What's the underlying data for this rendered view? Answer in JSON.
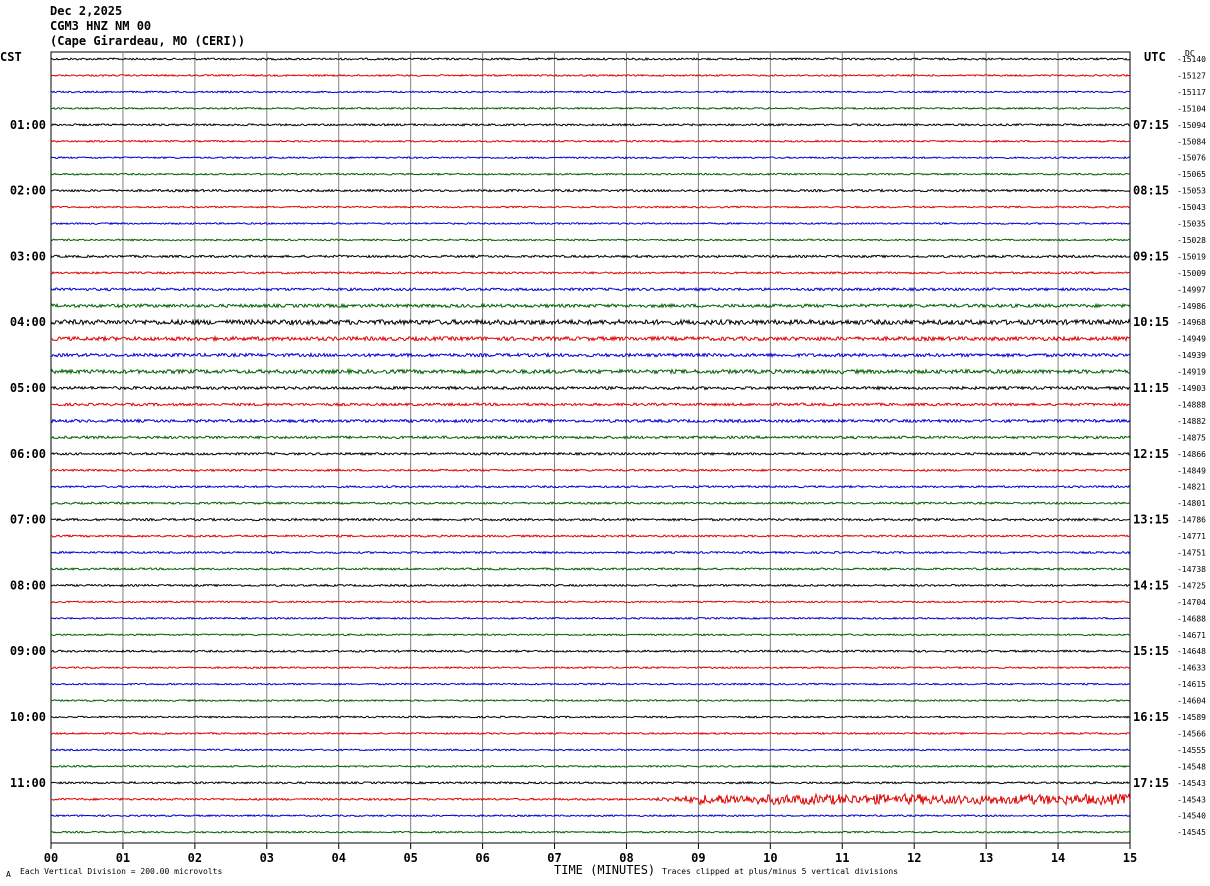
{
  "header": {
    "date": "Dec 2,2025",
    "station": "CGM3 HNZ NM 00",
    "location": "(Cape Girardeau, MO (CERI))"
  },
  "left_tz": "CST",
  "right_tz": "UTC",
  "dc_label": "DC",
  "footer": {
    "scale_note": "Each Vertical Division =  200.00 microvolts",
    "xlabel": "TIME (MINUTES)",
    "clip_note": "Traces clipped at plus/minus 5 vertical divisions",
    "corner_mark": "A"
  },
  "colors": {
    "cycle": [
      "#000000",
      "#e00000",
      "#0000d0",
      "#006000"
    ],
    "grid": "#808080"
  },
  "chart_data": {
    "type": "line",
    "xlabel": "TIME (MINUTES)",
    "xlim": [
      0,
      15
    ],
    "x_ticks": [
      "00",
      "01",
      "02",
      "03",
      "04",
      "05",
      "06",
      "07",
      "08",
      "09",
      "10",
      "11",
      "12",
      "13",
      "14",
      "15"
    ],
    "left_hour_labels": [
      "01:00",
      "02:00",
      "03:00",
      "04:00",
      "05:00",
      "06:00",
      "07:00",
      "08:00",
      "09:00",
      "10:00",
      "11:00"
    ],
    "right_hour_labels": [
      "07:15",
      "08:15",
      "09:15",
      "10:15",
      "11:15",
      "12:15",
      "13:15",
      "14:15",
      "15:15",
      "16:15",
      "17:15"
    ],
    "dc_offsets": [
      "-15140",
      "-15127",
      "-15117",
      "-15104",
      "-15094",
      "-15084",
      "-15076",
      "-15065",
      "-15053",
      "-15043",
      "-15035",
      "-15028",
      "-15019",
      "-15009",
      "-14997",
      "-14986",
      "-14968",
      "-14949",
      "-14939",
      "-14919",
      "-14903",
      "-14888",
      "-14882",
      "-14875",
      "-14866",
      "-14849",
      "-14821",
      "-14801",
      "-14786",
      "-14771",
      "-14751",
      "-14738",
      "-14725",
      "-14704",
      "-14688",
      "-14671",
      "-14648",
      "-14633",
      "-14615",
      "-14604",
      "-14589",
      "-14566",
      "-14555",
      "-14548",
      "-14543",
      "-14543",
      "-14540",
      "-14545"
    ],
    "trace_count": 48,
    "noise_levels": [
      0.6,
      0.5,
      0.5,
      0.5,
      0.6,
      0.5,
      0.5,
      0.5,
      0.7,
      0.5,
      0.5,
      0.5,
      0.7,
      0.6,
      0.8,
      1.0,
      1.5,
      1.2,
      1.0,
      1.2,
      0.9,
      0.8,
      0.9,
      0.8,
      0.7,
      0.6,
      0.6,
      0.6,
      0.7,
      0.6,
      0.6,
      0.6,
      0.6,
      0.5,
      0.5,
      0.5,
      0.6,
      0.5,
      0.5,
      0.5,
      0.5,
      0.5,
      0.5,
      0.5,
      0.6,
      0.6,
      0.5,
      0.5
    ],
    "active_segment": {
      "trace_index": 45,
      "x_start": 8.3,
      "x_end": 15,
      "amplitude_divisions": 3
    }
  }
}
